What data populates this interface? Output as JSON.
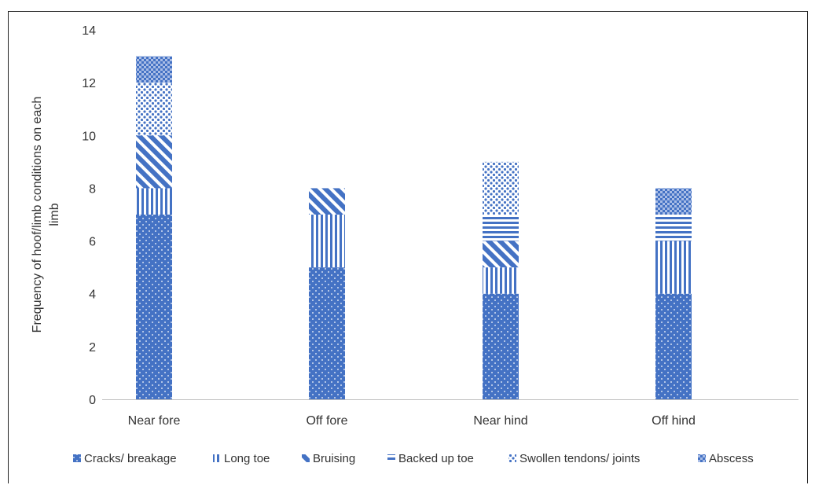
{
  "chart_data": {
    "type": "bar",
    "stacked": true,
    "title": "",
    "xlabel": "",
    "ylabel": "Frequency of hoof/limb conditions on each limb",
    "ylabel_lines": [
      "Frequency of hoof/limb conditions on each",
      "limb"
    ],
    "ylim": [
      0,
      14
    ],
    "yticks": [
      0,
      2,
      4,
      6,
      8,
      10,
      12,
      14
    ],
    "grid": false,
    "legend_position": "bottom",
    "categories": [
      "Near fore",
      "Off fore",
      "Near hind",
      "Off hind"
    ],
    "series": [
      {
        "name": "Cracks/ breakage",
        "pattern": "dots",
        "values": [
          7,
          5,
          4,
          4
        ]
      },
      {
        "name": "Long toe",
        "pattern": "vertical",
        "values": [
          1,
          2,
          1,
          2
        ]
      },
      {
        "name": "Bruising",
        "pattern": "diagonal",
        "values": [
          2,
          1,
          1,
          0
        ]
      },
      {
        "name": "Backed up toe",
        "pattern": "horizontal",
        "values": [
          0,
          0,
          1,
          1
        ]
      },
      {
        "name": "Swollen tendons/ joints",
        "pattern": "sparse-dots",
        "values": [
          2,
          0,
          2,
          0
        ]
      },
      {
        "name": "Abscess",
        "pattern": "grid",
        "values": [
          1,
          0,
          0,
          1
        ]
      }
    ],
    "colors": {
      "primary": "#4472c4",
      "axis": "#bfbfbf",
      "text": "#333333"
    }
  }
}
